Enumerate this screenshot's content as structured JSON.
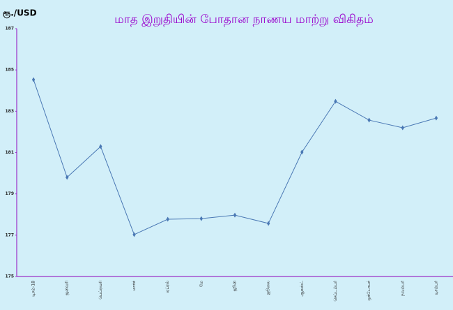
{
  "chart_data": {
    "type": "line",
    "title": "மாத இறுதியின் போதான நாணய மாற்று விகிதம்",
    "y_label": "ரூ./USD",
    "categories": [
      "டிசம்-18",
      "ஜனவரி",
      "பெப்ரவரி",
      "மார்ச்",
      "ஏப்ரல்",
      "மே",
      "ஜூன்",
      "ஜூலை",
      "ஆகஸ்ட்",
      "செப்டம்பர்",
      "ஒக்டோபர்",
      "நவம்பர்",
      "டிசம்பர்"
    ],
    "series": [
      {
        "name": "ரூ./USD",
        "color": "#4a78b4",
        "values": [
          184.53,
          179.8,
          181.29,
          177.03,
          177.77,
          177.8,
          177.97,
          177.57,
          181.02,
          183.48,
          182.57,
          182.2,
          182.67
        ]
      }
    ],
    "ylim": [
      175,
      187
    ],
    "yticks": [
      175,
      177,
      179,
      181,
      183,
      185,
      187
    ],
    "axis_color": "#9b30c8",
    "title_color": "#9900cc"
  }
}
